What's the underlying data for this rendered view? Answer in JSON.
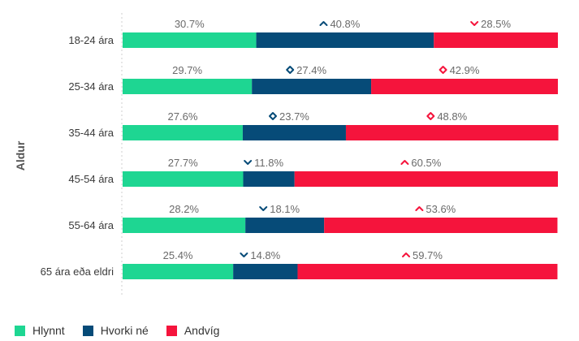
{
  "chart_data": {
    "type": "bar",
    "orientation": "horizontal",
    "stacked": true,
    "ylabel": "Aldur",
    "categories": [
      "18-24 ára",
      "25-34 ára",
      "35-44 ára",
      "45-54 ára",
      "55-64 ára",
      "65 ára eða eldri"
    ],
    "series": [
      {
        "name": "Hlynnt",
        "color": "#1ed692",
        "values": [
          30.7,
          29.7,
          27.6,
          27.7,
          28.2,
          25.4
        ]
      },
      {
        "name": "Hvorki né",
        "color": "#064b78",
        "values": [
          40.8,
          27.4,
          23.7,
          11.8,
          18.1,
          14.8
        ]
      },
      {
        "name": "Andvíg",
        "color": "#f5143c",
        "values": [
          28.5,
          42.9,
          48.8,
          60.5,
          53.6,
          59.7
        ]
      }
    ],
    "labels": [
      [
        "30.7%",
        "40.8%",
        "28.5%"
      ],
      [
        "29.7%",
        "27.4%",
        "42.9%"
      ],
      [
        "27.6%",
        "23.7%",
        "48.8%"
      ],
      [
        "27.7%",
        "11.8%",
        "60.5%"
      ],
      [
        "28.2%",
        "18.1%",
        "53.6%"
      ],
      [
        "25.4%",
        "14.8%",
        "59.7%"
      ]
    ],
    "trend_icons": [
      [
        null,
        "chevron-up-icon",
        "chevron-down-icon"
      ],
      [
        null,
        "diamond-icon",
        "diamond-icon"
      ],
      [
        null,
        "diamond-icon",
        "diamond-icon"
      ],
      [
        null,
        "chevron-down-icon",
        "chevron-up-icon"
      ],
      [
        null,
        "chevron-down-icon",
        "chevron-up-icon"
      ],
      [
        null,
        "chevron-down-icon",
        "chevron-up-icon"
      ]
    ],
    "xlim": [
      0,
      100
    ],
    "grid": false,
    "legend_position": "bottom-left"
  }
}
